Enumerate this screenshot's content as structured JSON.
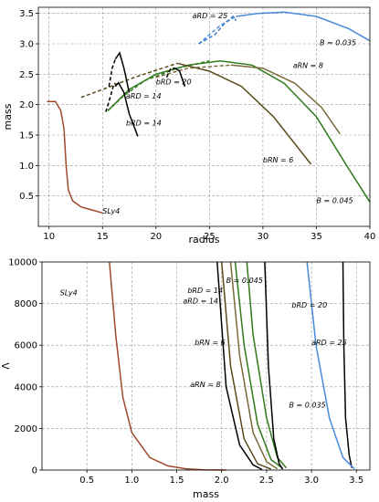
{
  "chart_data": [
    {
      "type": "line",
      "xlabel": "radius",
      "ylabel": "mass",
      "xlim": [
        9,
        40
      ],
      "ylim": [
        0,
        3.6
      ],
      "xticks": [
        10,
        15,
        20,
        25,
        30,
        35,
        40
      ],
      "yticks": [
        0.5,
        1.0,
        1.5,
        2.0,
        2.5,
        3.0,
        3.5
      ],
      "xtick_labels": [
        "10",
        "15",
        "20",
        "25",
        "30",
        "35",
        "40"
      ],
      "ytick_labels": [
        "0.5",
        "1.0",
        "1.5",
        "2.0",
        "2.5",
        "3.0",
        "3.5"
      ],
      "grid": true,
      "series": [
        {
          "name": "SLy4",
          "color": "#a0482a",
          "style": "solid",
          "x": [
            9.8,
            10.6,
            11.1,
            11.4,
            11.6,
            11.8,
            12.2,
            13.0,
            14.0,
            15.0
          ],
          "y": [
            2.05,
            2.05,
            1.9,
            1.6,
            1.0,
            0.6,
            0.42,
            0.32,
            0.27,
            0.22
          ]
        },
        {
          "name": "B = 0.045",
          "color": "#2f7a1b",
          "style": "solid",
          "x": [
            15.5,
            17.5,
            20.0,
            23.0,
            26.0,
            29.0,
            32.0,
            35.0,
            38.0,
            40.0
          ],
          "y": [
            1.9,
            2.25,
            2.5,
            2.65,
            2.72,
            2.65,
            2.35,
            1.8,
            0.95,
            0.4
          ]
        },
        {
          "name": "B = 0.045",
          "color": "#2f7a1b",
          "style": "dashed",
          "x": [
            15.5,
            17.0,
            19.0,
            22.0,
            25.0
          ],
          "y": [
            1.9,
            2.15,
            2.4,
            2.6,
            2.72
          ]
        },
        {
          "name": "bRN = 6",
          "color": "#5a4a1a",
          "style": "solid",
          "x": [
            22.0,
            25.0,
            28.0,
            31.0,
            34.5
          ],
          "y": [
            2.68,
            2.55,
            2.3,
            1.8,
            1.02
          ]
        },
        {
          "name": "bRN = 6",
          "color": "#5a4a1a",
          "style": "dashed",
          "x": [
            13.0,
            15.0,
            18.0,
            22.0
          ],
          "y": [
            2.12,
            2.25,
            2.45,
            2.68
          ]
        },
        {
          "name": "aRN = 8",
          "color": "#7a6a3a",
          "style": "solid",
          "x": [
            27.0,
            30.0,
            33.0,
            35.5,
            37.2
          ],
          "y": [
            2.65,
            2.6,
            2.35,
            1.95,
            1.52
          ]
        },
        {
          "name": "aRN = 8",
          "color": "#7a6a3a",
          "style": "dashed",
          "x": [
            20.0,
            23.0,
            27.0
          ],
          "y": [
            2.45,
            2.6,
            2.65
          ]
        },
        {
          "name": "aRD = 14",
          "color": "#000000",
          "style": "solid",
          "x": [
            16.2,
            16.5,
            17.0,
            17.5,
            18.3
          ],
          "y": [
            2.3,
            2.36,
            2.2,
            1.85,
            1.48
          ]
        },
        {
          "name": "aRD = 14",
          "color": "#000000",
          "style": "dashed",
          "x": [
            15.3,
            15.6,
            16.0,
            16.2
          ],
          "y": [
            1.88,
            2.05,
            2.3,
            2.36
          ]
        },
        {
          "name": "bRD = 14",
          "color": "#000000",
          "style": "solid",
          "x": [
            16.2,
            16.6,
            17.0,
            17.5
          ],
          "y": [
            2.75,
            2.85,
            2.6,
            2.2
          ]
        },
        {
          "name": "bRD = 14",
          "color": "#000000",
          "style": "dashed",
          "x": [
            15.6,
            15.9,
            16.2
          ],
          "y": [
            2.3,
            2.6,
            2.75
          ]
        },
        {
          "name": "bRD = 20",
          "color": "#000000",
          "style": "solid",
          "x": [
            21.8,
            22.2,
            22.7
          ],
          "y": [
            2.6,
            2.55,
            2.3
          ]
        },
        {
          "name": "bRD = 20",
          "color": "#000000",
          "style": "dashed",
          "x": [
            21.0,
            21.4,
            21.8
          ],
          "y": [
            2.45,
            2.6,
            2.6
          ]
        },
        {
          "name": "aRD = 25",
          "color": "#3a7ac8",
          "style": "dashed",
          "x": [
            24.0,
            25.5,
            26.5,
            27.2,
            27.5
          ],
          "y": [
            3.0,
            3.15,
            3.35,
            3.45,
            3.38
          ]
        },
        {
          "name": "B = 0.035",
          "color": "#4a8ad8",
          "style": "solid",
          "x": [
            27.5,
            29.5,
            32.0,
            35.0,
            38.0,
            40.0
          ],
          "y": [
            3.45,
            3.5,
            3.52,
            3.45,
            3.25,
            3.05
          ]
        },
        {
          "name": "B = 0.035",
          "color": "#4a8ad8",
          "style": "dashed",
          "x": [
            24.0,
            26.0,
            27.5
          ],
          "y": [
            3.0,
            3.3,
            3.45
          ]
        }
      ],
      "annotations": [
        {
          "text": "aRD = 25",
          "x": 23.4,
          "y": 3.42
        },
        {
          "text": "B = 0.035",
          "x": 35.3,
          "y": 2.98
        },
        {
          "text": "aRN = 8",
          "x": 32.8,
          "y": 2.6
        },
        {
          "text": "aRD = 14",
          "x": 17.2,
          "y": 2.1
        },
        {
          "text": "bRD = 14",
          "x": 17.2,
          "y": 1.66
        },
        {
          "text": "bRD = 20",
          "x": 20.0,
          "y": 2.33
        },
        {
          "text": "bRN = 6",
          "x": 30.0,
          "y": 1.05
        },
        {
          "text": "SLy4",
          "x": 15.0,
          "y": 0.21
        },
        {
          "text": "B = 0.045",
          "x": 35.0,
          "y": 0.38
        }
      ]
    },
    {
      "type": "line",
      "xlabel": "mass",
      "ylabel": "Λ",
      "xlim": [
        0,
        3.65
      ],
      "ylim": [
        0,
        10000
      ],
      "xticks": [
        0.5,
        1.0,
        1.5,
        2.0,
        2.5,
        3.0,
        3.5
      ],
      "yticks": [
        0,
        2000,
        4000,
        6000,
        8000,
        10000
      ],
      "xtick_labels": [
        "0.5",
        "1.0",
        "1.5",
        "2.0",
        "2.5",
        "3.0",
        "3.5"
      ],
      "ytick_labels": [
        "0",
        "2000",
        "4000",
        "6000",
        "8000",
        "10000"
      ],
      "grid": true,
      "series": [
        {
          "name": "SLy4",
          "color": "#a0482a",
          "style": "solid",
          "x": [
            0.75,
            0.82,
            0.9,
            1.0,
            1.2,
            1.4,
            1.6,
            1.8,
            2.05
          ],
          "y": [
            10000,
            6500,
            3500,
            1800,
            600,
            200,
            60,
            15,
            0
          ]
        },
        {
          "name": "bRD = 14",
          "color": "#000000",
          "style": "solid",
          "x": [
            1.95,
            2.05,
            2.2,
            2.35,
            2.45
          ],
          "y": [
            10000,
            4000,
            1200,
            250,
            20
          ]
        },
        {
          "name": "aRD = 14",
          "color": "#5a4a1a",
          "style": "solid",
          "x": [
            2.0,
            2.1,
            2.25,
            2.4,
            2.55
          ],
          "y": [
            10000,
            5000,
            1500,
            300,
            50
          ]
        },
        {
          "name": "bRN = 6",
          "color": "#7a6a3a",
          "style": "solid",
          "x": [
            2.1,
            2.2,
            2.35,
            2.5,
            2.62
          ],
          "y": [
            10000,
            5500,
            1800,
            400,
            60
          ]
        },
        {
          "name": "aRN = 8",
          "color": "#2f7a1b",
          "style": "solid",
          "x": [
            2.15,
            2.25,
            2.4,
            2.55,
            2.68
          ],
          "y": [
            10000,
            6000,
            2200,
            500,
            80
          ]
        },
        {
          "name": "B = 0.045",
          "color": "#2f7a1b",
          "style": "solid",
          "x": [
            2.28,
            2.35,
            2.5,
            2.62,
            2.72
          ],
          "y": [
            10000,
            6500,
            2500,
            600,
            100
          ]
        },
        {
          "name": "bRD = 20",
          "color": "#000000",
          "style": "solid",
          "x": [
            2.48,
            2.52,
            2.58,
            2.64,
            2.68
          ],
          "y": [
            10000,
            5000,
            1500,
            300,
            40
          ]
        },
        {
          "name": "aRD = 25",
          "color": "#000000",
          "style": "solid",
          "x": [
            3.35,
            3.36,
            3.38,
            3.42,
            3.45
          ],
          "y": [
            10000,
            6000,
            2500,
            700,
            100
          ]
        },
        {
          "name": "B = 0.035",
          "color": "#4a8ad8",
          "style": "solid",
          "x": [
            2.95,
            3.05,
            3.2,
            3.35,
            3.48
          ],
          "y": [
            10000,
            6000,
            2500,
            600,
            50
          ]
        }
      ],
      "annotations": [
        {
          "text": "SLy4",
          "x": 0.2,
          "y": 8400
        },
        {
          "text": "bRD = 14",
          "x": 1.62,
          "y": 8500
        },
        {
          "text": "B = 0.045",
          "x": 2.05,
          "y": 9000
        },
        {
          "text": "bRD = 20",
          "x": 2.78,
          "y": 7800
        },
        {
          "text": "aRD = 14",
          "x": 1.57,
          "y": 8000
        },
        {
          "text": "bRN = 6",
          "x": 1.7,
          "y": 6000
        },
        {
          "text": "aRD = 25",
          "x": 3.0,
          "y": 6000
        },
        {
          "text": "aRN = 8",
          "x": 1.65,
          "y": 4000
        },
        {
          "text": "B = 0.035",
          "x": 2.75,
          "y": 3000
        }
      ]
    }
  ]
}
